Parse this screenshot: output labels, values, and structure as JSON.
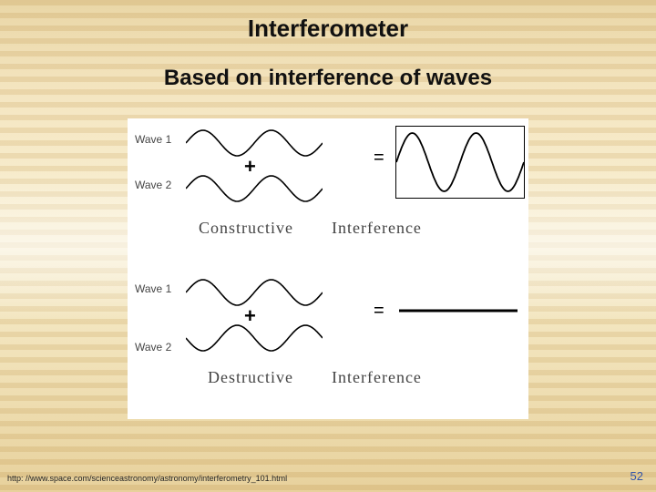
{
  "title": "Interferometer",
  "subtitle": "Based on interference of waves",
  "footer_url": "http: //www.space.com/scienceastronomy/astronomy/interferometry_101.html",
  "slide_number": "52",
  "diagram": {
    "panel_bg": "#ffffff",
    "line_color": "#000000",
    "line_width": 1.6,
    "label_color": "#444444",
    "constructive": {
      "wave1_label": "Wave 1",
      "wave2_label": "Wave 2",
      "plus": "+",
      "equals": "=",
      "wave_amplitude": 14,
      "result_amplitude": 32,
      "cycles": 2,
      "label_line1": "Constructive",
      "label_line2": "Interference"
    },
    "destructive": {
      "wave1_label": "Wave 1",
      "wave2_label": "Wave 2",
      "plus": "+",
      "equals": "=",
      "wave_amplitude": 14,
      "result_amplitude": 0,
      "cycles": 2,
      "phase_shift_wave2_deg": 180,
      "label_line1": "Destructive",
      "label_line2": "Interference"
    }
  }
}
